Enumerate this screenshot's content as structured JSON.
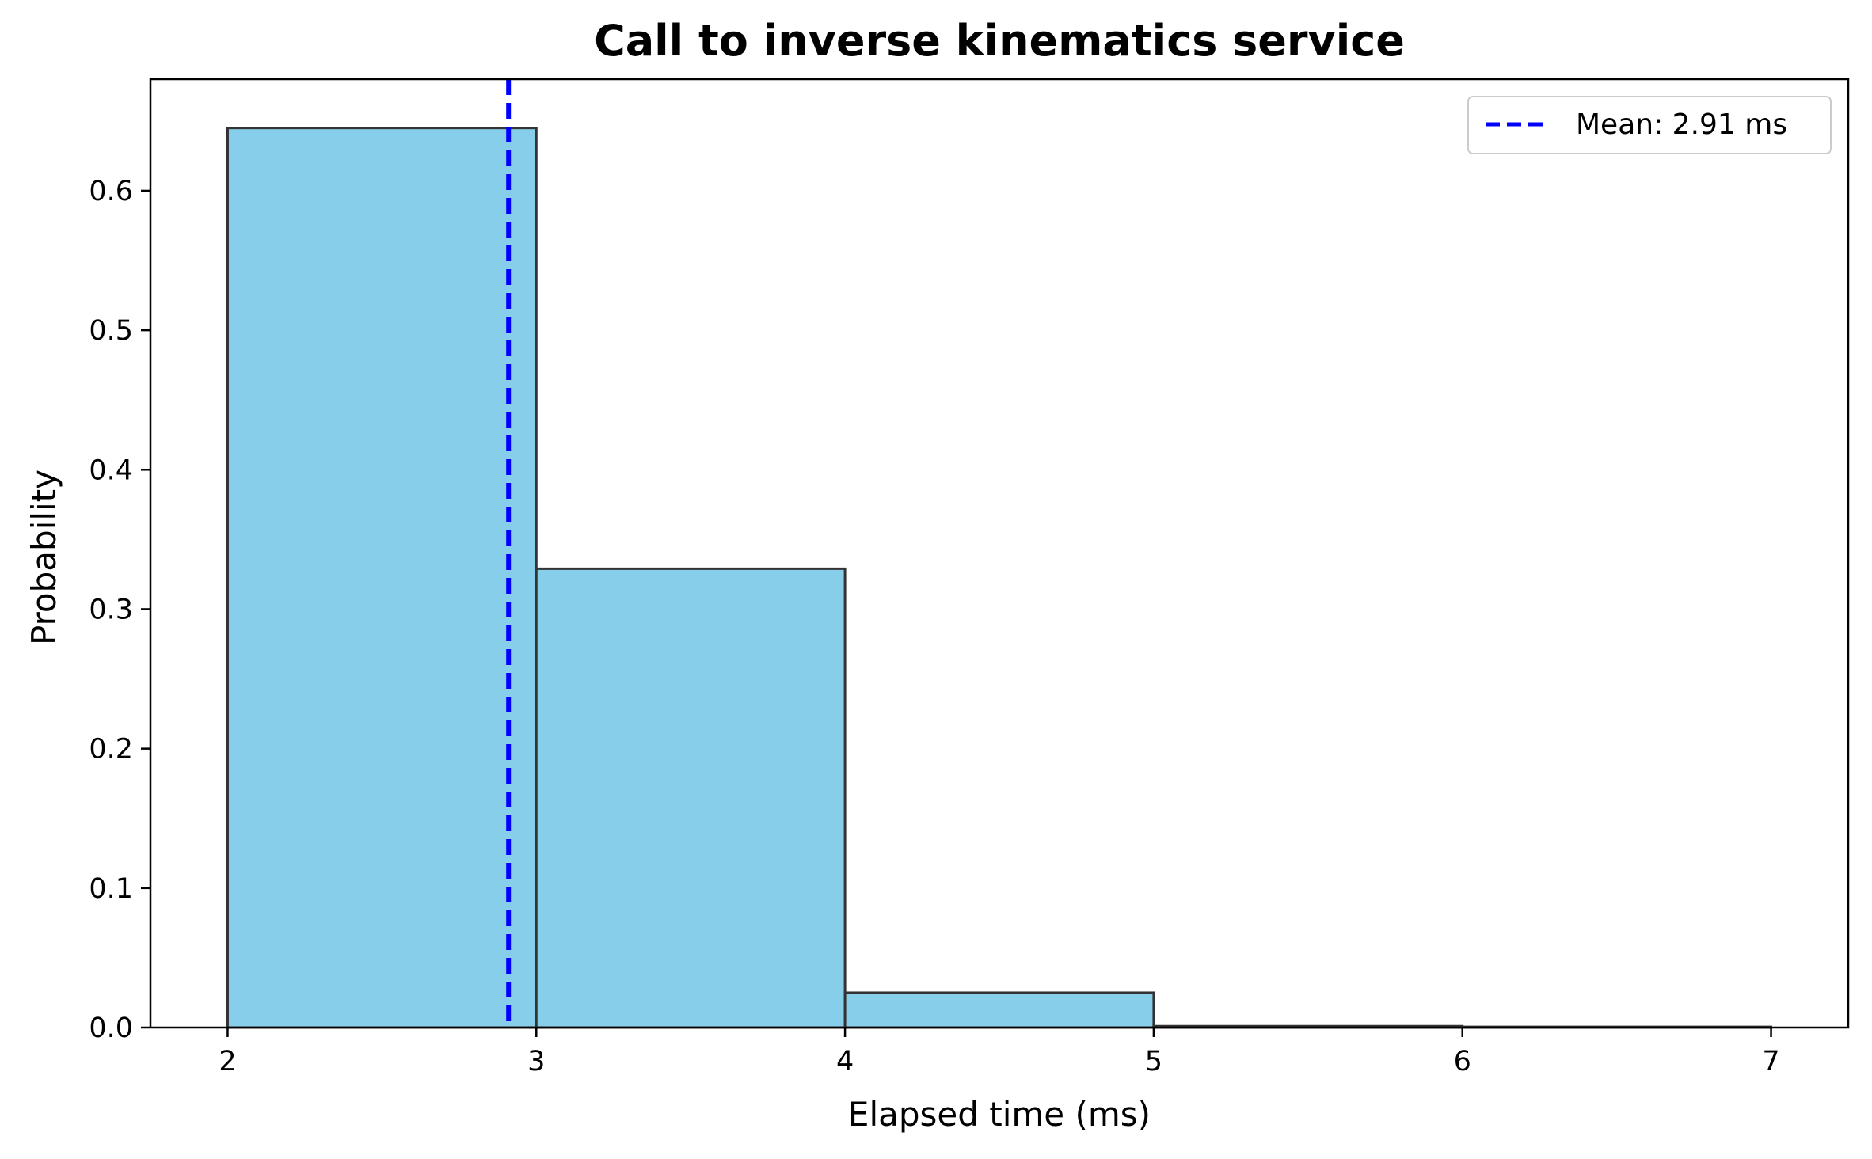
{
  "chart_data": {
    "type": "bar",
    "subtype": "histogram",
    "title": "Call to inverse kinematics service",
    "xlabel": "Elapsed time (ms)",
    "ylabel": "Probability",
    "xlim": [
      1.75,
      7.25
    ],
    "ylim": [
      0.0,
      0.68
    ],
    "xticks": [
      2,
      3,
      4,
      5,
      6,
      7
    ],
    "yticks": [
      0.0,
      0.1,
      0.2,
      0.3,
      0.4,
      0.5,
      0.6
    ],
    "bins": [
      {
        "start": 2,
        "end": 3,
        "value": 0.645
      },
      {
        "start": 3,
        "end": 4,
        "value": 0.329
      },
      {
        "start": 4,
        "end": 5,
        "value": 0.025
      },
      {
        "start": 5,
        "end": 6,
        "value": 0.001
      },
      {
        "start": 6,
        "end": 7,
        "value": 0.0005
      }
    ],
    "mean_line": {
      "x": 2.91,
      "label": "Mean: 2.91 ms"
    },
    "legend_position": "top-right",
    "grid": false,
    "colors": {
      "bar_fill": "#87CEEB",
      "bar_edge": "#333333",
      "mean_line": "#0000FF"
    }
  }
}
